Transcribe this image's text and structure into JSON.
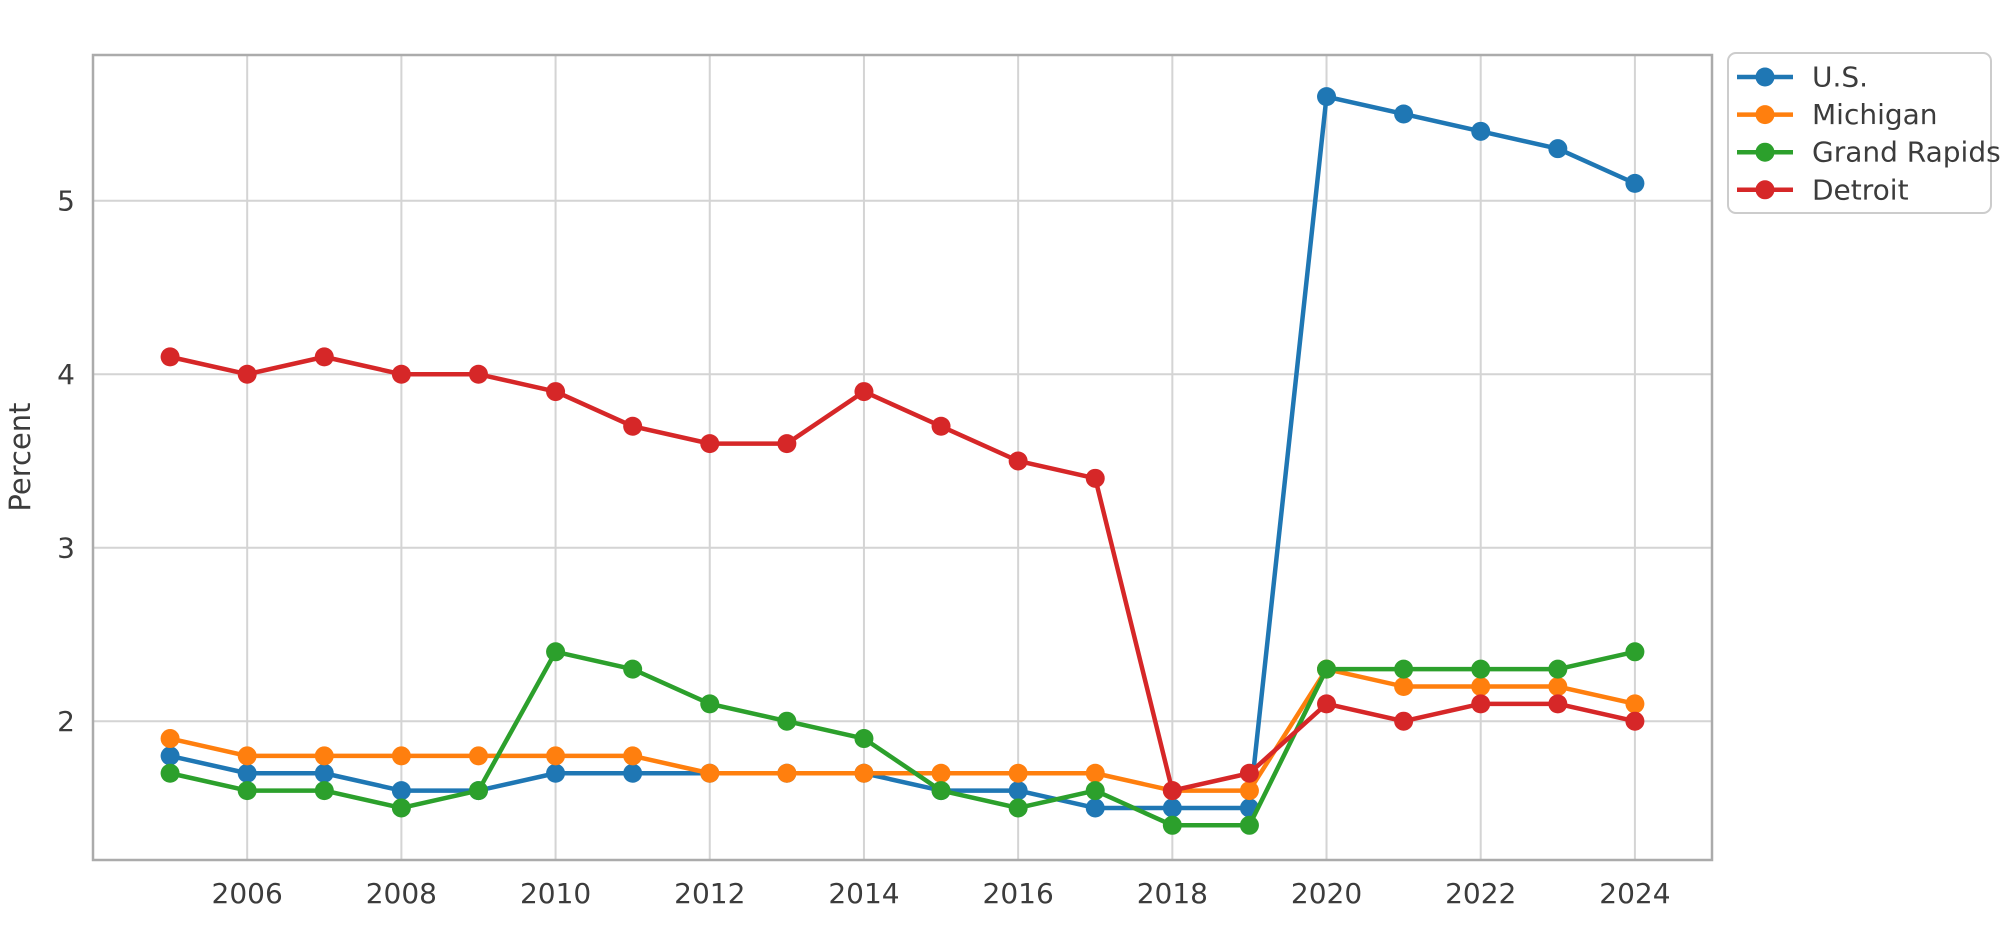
{
  "chart_data": {
    "type": "line",
    "title": "",
    "xlabel": "",
    "ylabel": "Percent",
    "x": [
      2005,
      2006,
      2007,
      2008,
      2009,
      2010,
      2011,
      2012,
      2013,
      2014,
      2015,
      2016,
      2017,
      2018,
      2019,
      2020,
      2021,
      2022,
      2023,
      2024
    ],
    "series": [
      {
        "name": "U.S.",
        "color": "#1f77b4",
        "values": [
          1.8,
          1.7,
          1.7,
          1.6,
          1.6,
          1.7,
          1.7,
          1.7,
          1.7,
          1.7,
          1.6,
          1.6,
          1.5,
          1.5,
          1.5,
          5.6,
          5.5,
          5.4,
          5.3,
          5.1
        ]
      },
      {
        "name": "Michigan",
        "color": "#ff7f0e",
        "values": [
          1.9,
          1.8,
          1.8,
          1.8,
          1.8,
          1.8,
          1.8,
          1.7,
          1.7,
          1.7,
          1.7,
          1.7,
          1.7,
          1.6,
          1.6,
          2.3,
          2.2,
          2.2,
          2.2,
          2.1
        ]
      },
      {
        "name": "Grand Rapids",
        "color": "#2ca02c",
        "values": [
          1.7,
          1.6,
          1.6,
          1.5,
          1.6,
          2.4,
          2.3,
          2.1,
          2.0,
          1.9,
          1.6,
          1.5,
          1.6,
          1.4,
          1.4,
          2.3,
          2.3,
          2.3,
          2.3,
          2.4
        ]
      },
      {
        "name": "Detroit",
        "color": "#d62728",
        "values": [
          4.1,
          4.0,
          4.1,
          4.0,
          4.0,
          3.9,
          3.7,
          3.6,
          3.6,
          3.9,
          3.7,
          3.5,
          3.4,
          1.6,
          1.7,
          2.1,
          2.0,
          2.1,
          2.1,
          2.0
        ]
      }
    ],
    "xticks": [
      2006,
      2008,
      2010,
      2012,
      2014,
      2016,
      2018,
      2020,
      2022,
      2024
    ],
    "yticks": [
      2,
      3,
      4,
      5
    ],
    "xlim": [
      2004,
      2025
    ],
    "ylim": [
      1.2,
      5.84
    ],
    "grid": true,
    "legend_position": "outside upper right",
    "legend_labels": [
      "U.S.",
      "Michigan",
      "Grand Rapids",
      "Detroit"
    ]
  },
  "colors": {
    "background": "#ffffff",
    "grid": "#d4d4d4",
    "frame": "#ababab",
    "tick_text": "#3c3c3c",
    "legend_border": "#cccccc",
    "legend_background": "#ffffff"
  }
}
